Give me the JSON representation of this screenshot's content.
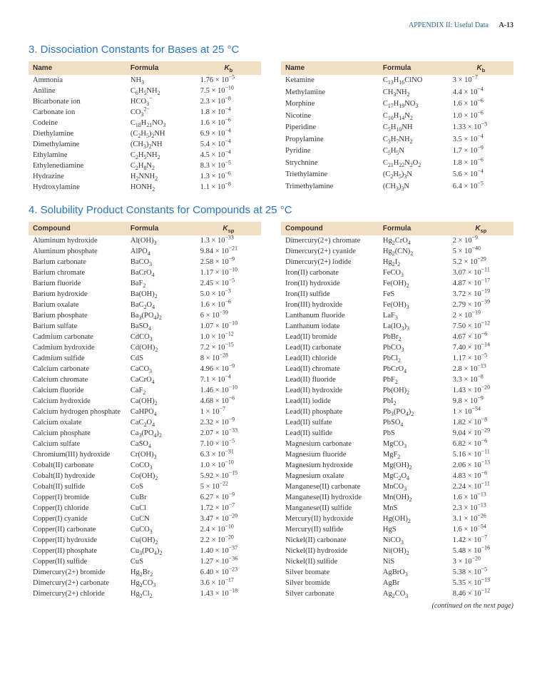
{
  "header": {
    "appendix": "APPENDIX II: Useful Data",
    "page": "A-13"
  },
  "section3": {
    "title": "3. Dissociation Constants for Bases at 25 °C",
    "cols": [
      "Name",
      "Formula",
      "K_b"
    ],
    "left": [
      {
        "name": "Ammonia",
        "formula": "NH<sub>3</sub>",
        "k": "1.76 × 10<sup>−5</sup>"
      },
      {
        "name": "Aniline",
        "formula": "C<sub>6</sub>H<sub>5</sub>NH<sub>2</sub>",
        "k": "7.5 × 10<sup>−10</sup>"
      },
      {
        "name": "Bicarbonate ion",
        "formula": "HCO<sub>3</sub><sup>−</sup>",
        "k": "2.3 × 10<sup>−8</sup>"
      },
      {
        "name": "Carbonate ion",
        "formula": "CO<sub>3</sub><sup>2−</sup>",
        "k": "1.8 × 10<sup>−4</sup>"
      },
      {
        "name": "Codeine",
        "formula": "C<sub>18</sub>H<sub>21</sub>NO<sub>3</sub>",
        "k": "1.6 × 10<sup>−6</sup>"
      },
      {
        "name": "Diethylamine",
        "formula": "(C<sub>2</sub>H<sub>5</sub>)<sub>2</sub>NH",
        "k": "6.9 × 10<sup>−4</sup>"
      },
      {
        "name": "Dimethylamine",
        "formula": "(CH<sub>3</sub>)<sub>2</sub>NH",
        "k": "5.4 × 10<sup>−4</sup>"
      },
      {
        "name": "Ethylamine",
        "formula": "C<sub>2</sub>H<sub>5</sub>NH<sub>2</sub>",
        "k": "4.5 × 10<sup>−4</sup>"
      },
      {
        "name": "Ethylenediamine",
        "formula": "C<sub>2</sub>H<sub>8</sub>N<sub>2</sub>",
        "k": "8.3 × 10<sup>−5</sup>"
      },
      {
        "name": "Hydrazine",
        "formula": "H<sub>2</sub>NNH<sub>2</sub>",
        "k": "1.3 × 10<sup>−6</sup>"
      },
      {
        "name": "Hydroxylamine",
        "formula": "HONH<sub>2</sub>",
        "k": "1.1 × 10<sup>−8</sup>"
      }
    ],
    "right": [
      {
        "name": "Ketamine",
        "formula": "C<sub>13</sub>H<sub>16</sub>ClNO",
        "k": "3 × 10<sup>−7</sup>"
      },
      {
        "name": "Methylamine",
        "formula": "CH<sub>3</sub>NH<sub>2</sub>",
        "k": "4.4 × 10<sup>−4</sup>"
      },
      {
        "name": "Morphine",
        "formula": "C<sub>17</sub>H<sub>19</sub>NO<sub>3</sub>",
        "k": "1.6 × 10<sup>−6</sup>"
      },
      {
        "name": "Nicotine",
        "formula": "C<sub>10</sub>H<sub>14</sub>N<sub>2</sub>",
        "k": "1.0 × 10<sup>−6</sup>"
      },
      {
        "name": "Piperidine",
        "formula": "C<sub>5</sub>H<sub>10</sub>NH",
        "k": "1.33 × 10<sup>−3</sup>"
      },
      {
        "name": "Propylamine",
        "formula": "C<sub>3</sub>H<sub>7</sub>NH<sub>2</sub>",
        "k": "3.5 × 10<sup>−4</sup>"
      },
      {
        "name": "Pyridine",
        "formula": "C<sub>5</sub>H<sub>5</sub>N",
        "k": "1.7 × 10<sup>−9</sup>"
      },
      {
        "name": "Strychnine",
        "formula": "C<sub>21</sub>H<sub>22</sub>N<sub>2</sub>O<sub>2</sub>",
        "k": "1.8 × 10<sup>−6</sup>"
      },
      {
        "name": "Triethylamine",
        "formula": "(C<sub>2</sub>H<sub>5</sub>)<sub>3</sub>N",
        "k": "5.6 × 10<sup>−4</sup>"
      },
      {
        "name": "Trimethylamine",
        "formula": "(CH<sub>3</sub>)<sub>3</sub>N",
        "k": "6.4 × 10<sup>−5</sup>"
      }
    ]
  },
  "section4": {
    "title": "4. Solubility Product Constants for Compounds at 25 °C",
    "cols": [
      "Compound",
      "Formula",
      "K_sp"
    ],
    "left": [
      {
        "name": "Aluminum hydroxide",
        "formula": "Al(OH)<sub>3</sub>",
        "k": "1.3 × 10<sup>−33</sup>"
      },
      {
        "name": "Aluminum phosphate",
        "formula": "AlPO<sub>4</sub>",
        "k": "9.84 × 10<sup>−21</sup>"
      },
      {
        "name": "Barium carbonate",
        "formula": "BaCO<sub>3</sub>",
        "k": "2.58 × 10<sup>−9</sup>"
      },
      {
        "name": "Barium chromate",
        "formula": "BaCrO<sub>4</sub>",
        "k": "1.17 × 10<sup>−10</sup>"
      },
      {
        "name": "Barium fluoride",
        "formula": "BaF<sub>2</sub>",
        "k": "2.45 × 10<sup>−5</sup>"
      },
      {
        "name": "Barium hydroxide",
        "formula": "Ba(OH)<sub>2</sub>",
        "k": "5.0 × 10<sup>−3</sup>"
      },
      {
        "name": "Barium oxalate",
        "formula": "BaC<sub>2</sub>O<sub>4</sub>",
        "k": "1.6 × 10<sup>−6</sup>"
      },
      {
        "name": "Barium phosphate",
        "formula": "Ba<sub>3</sub>(PO<sub>4</sub>)<sub>2</sub>",
        "k": "6 × 10<sup>−39</sup>"
      },
      {
        "name": "Barium sulfate",
        "formula": "BaSO<sub>4</sub>",
        "k": "1.07 × 10<sup>−10</sup>"
      },
      {
        "name": "Cadmium carbonate",
        "formula": "CdCO<sub>3</sub>",
        "k": "1.0 × 10<sup>−12</sup>"
      },
      {
        "name": "Cadmium hydroxide",
        "formula": "Cd(OH)<sub>2</sub>",
        "k": "7.2 × 10<sup>−15</sup>"
      },
      {
        "name": "Cadmium sulfide",
        "formula": "CdS",
        "k": "8 × 10<sup>−28</sup>"
      },
      {
        "name": "Calcium carbonate",
        "formula": "CaCO<sub>3</sub>",
        "k": "4.96 × 10<sup>−9</sup>"
      },
      {
        "name": "Calcium chromate",
        "formula": "CaCrO<sub>4</sub>",
        "k": "7.1 × 10<sup>−4</sup>"
      },
      {
        "name": "Calcium fluoride",
        "formula": "CaF<sub>2</sub>",
        "k": "1.46 × 10<sup>−10</sup>"
      },
      {
        "name": "Calcium hydroxide",
        "formula": "Ca(OH)<sub>2</sub>",
        "k": "4.68 × 10<sup>−6</sup>"
      },
      {
        "name": "Calcium hydrogen phosphate",
        "formula": "CaHPO<sub>4</sub>",
        "k": "1 × 10<sup>−7</sup>"
      },
      {
        "name": "Calcium oxalate",
        "formula": "CaC<sub>2</sub>O<sub>4</sub>",
        "k": "2.32 × 10<sup>−9</sup>"
      },
      {
        "name": "Calcium phosphate",
        "formula": "Ca<sub>3</sub>(PO<sub>4</sub>)<sub>2</sub>",
        "k": "2.07 × 10<sup>−33</sup>"
      },
      {
        "name": "Calcium sulfate",
        "formula": "CaSO<sub>4</sub>",
        "k": "7.10 × 10<sup>−5</sup>"
      },
      {
        "name": "Chromium(III) hydroxide",
        "formula": "Cr(OH)<sub>3</sub>",
        "k": "6.3 × 10<sup>−31</sup>"
      },
      {
        "name": "Cobalt(II) carbonate",
        "formula": "CoCO<sub>3</sub>",
        "k": "1.0 × 10<sup>−10</sup>"
      },
      {
        "name": "Cobalt(II) hydroxide",
        "formula": "Co(OH)<sub>2</sub>",
        "k": "5.92 × 10<sup>−15</sup>"
      },
      {
        "name": "Cobalt(II) sulfide",
        "formula": "CoS",
        "k": "5 × 10<sup>−22</sup>"
      },
      {
        "name": "Copper(I) bromide",
        "formula": "CuBr",
        "k": "6.27 × 10<sup>−9</sup>"
      },
      {
        "name": "Copper(I) chloride",
        "formula": "CuCl",
        "k": "1.72 × 10<sup>−7</sup>"
      },
      {
        "name": "Copper(I) cyanide",
        "formula": "CuCN",
        "k": "3.47 × 10<sup>−20</sup>"
      },
      {
        "name": "Copper(II) carbonate",
        "formula": "CuCO<sub>3</sub>",
        "k": "2.4 × 10<sup>−10</sup>"
      },
      {
        "name": "Copper(II) hydroxide",
        "formula": "Cu(OH)<sub>2</sub>",
        "k": "2.2 × 10<sup>−20</sup>"
      },
      {
        "name": "Copper(II) phosphate",
        "formula": "Cu<sub>3</sub>(PO<sub>4</sub>)<sub>2</sub>",
        "k": "1.40 × 10<sup>−37</sup>"
      },
      {
        "name": "Copper(II) sulfide",
        "formula": "CuS",
        "k": "1.27 × 10<sup>−36</sup>"
      },
      {
        "name": "Dimercury(2+) bromide",
        "formula": "Hg<sub>2</sub>Br<sub>2</sub>",
        "k": "6.40 × 10<sup>−23</sup>"
      },
      {
        "name": "Dimercury(2+) carbonate",
        "formula": "Hg<sub>2</sub>CO<sub>3</sub>",
        "k": "3.6 × 10<sup>−17</sup>"
      },
      {
        "name": "Dimercury(2+) chloride",
        "formula": "Hg<sub>2</sub>Cl<sub>2</sub>",
        "k": "1.43 × 10<sup>−18</sup>"
      }
    ],
    "right": [
      {
        "name": "Dimercury(2+) chromate",
        "formula": "Hg<sub>2</sub>CrO<sub>4</sub>",
        "k": "2 × 10<sup>−9</sup>"
      },
      {
        "name": "Dimercury(2+) cyanide",
        "formula": "Hg<sub>2</sub>(CN)<sub>2</sub>",
        "k": "5 × 10<sup>−40</sup>"
      },
      {
        "name": "Dimercury(2+) iodide",
        "formula": "Hg<sub>2</sub>I<sub>2</sub>",
        "k": "5.2 × 10<sup>−29</sup>"
      },
      {
        "name": "Iron(II) carbonate",
        "formula": "FeCO<sub>3</sub>",
        "k": "3.07 × 10<sup>−11</sup>"
      },
      {
        "name": "Iron(II) hydroxide",
        "formula": "Fe(OH)<sub>2</sub>",
        "k": "4.87 × 10<sup>−17</sup>"
      },
      {
        "name": "Iron(II) sulfide",
        "formula": "FeS",
        "k": "3.72 × 10<sup>−19</sup>"
      },
      {
        "name": "Iron(III) hydroxide",
        "formula": "Fe(OH)<sub>3</sub>",
        "k": "2.79 × 10<sup>−39</sup>"
      },
      {
        "name": "Lanthanum fluoride",
        "formula": "LaF<sub>3</sub>",
        "k": "2 × 10<sup>−19</sup>"
      },
      {
        "name": "Lanthanum iodate",
        "formula": "La(IO<sub>3</sub>)<sub>3</sub>",
        "k": "7.50 × 10<sup>−12</sup>"
      },
      {
        "name": "Lead(II) bromide",
        "formula": "PbBr<sub>2</sub>",
        "k": "4.67 × 10<sup>−6</sup>"
      },
      {
        "name": "Lead(II) carbonate",
        "formula": "PbCO<sub>3</sub>",
        "k": "7.40 × 10<sup>−14</sup>"
      },
      {
        "name": "Lead(II) chloride",
        "formula": "PbCl<sub>2</sub>",
        "k": "1.17 × 10<sup>−5</sup>"
      },
      {
        "name": "Lead(II) chromate",
        "formula": "PbCrO<sub>4</sub>",
        "k": "2.8 × 10<sup>−13</sup>"
      },
      {
        "name": "Lead(II) fluoride",
        "formula": "PbF<sub>2</sub>",
        "k": "3.3 × 10<sup>−8</sup>"
      },
      {
        "name": "Lead(II) hydroxide",
        "formula": "Pb(OH)<sub>2</sub>",
        "k": "1.43 × 10<sup>−20</sup>"
      },
      {
        "name": "Lead(II) iodide",
        "formula": "PbI<sub>2</sub>",
        "k": "9.8 × 10<sup>−9</sup>"
      },
      {
        "name": "Lead(II) phosphate",
        "formula": "Pb<sub>3</sub>(PO<sub>4</sub>)<sub>2</sub>",
        "k": "1 × 10<sup>−54</sup>"
      },
      {
        "name": "Lead(II) sulfate",
        "formula": "PbSO<sub>4</sub>",
        "k": "1.82 × 10<sup>−8</sup>"
      },
      {
        "name": "Lead(II) sulfide",
        "formula": "PbS",
        "k": "9.04 × 10<sup>−29</sup>"
      },
      {
        "name": "Magnesium carbonate",
        "formula": "MgCO<sub>3</sub>",
        "k": "6.82 × 10<sup>−6</sup>"
      },
      {
        "name": "Magnesium fluoride",
        "formula": "MgF<sub>2</sub>",
        "k": "5.16 × 10<sup>−11</sup>"
      },
      {
        "name": "Magnesium hydroxide",
        "formula": "Mg(OH)<sub>2</sub>",
        "k": "2.06 × 10<sup>−13</sup>"
      },
      {
        "name": "Magnesium oxalate",
        "formula": "MgC<sub>2</sub>O<sub>4</sub>",
        "k": "4.83 × 10<sup>−6</sup>"
      },
      {
        "name": "Manganese(II) carbonate",
        "formula": "MnCO<sub>3</sub>",
        "k": "2.24 × 10<sup>−11</sup>"
      },
      {
        "name": "Manganese(II) hydroxide",
        "formula": "Mn(OH)<sub>2</sub>",
        "k": "1.6 × 10<sup>−13</sup>"
      },
      {
        "name": "Manganese(II) sulfide",
        "formula": "MnS",
        "k": "2.3 × 10<sup>−13</sup>"
      },
      {
        "name": "Mercury(II) hydroxide",
        "formula": "Hg(OH)<sub>2</sub>",
        "k": "3.1 × 10<sup>−26</sup>"
      },
      {
        "name": "Mercury(II) sulfide",
        "formula": "HgS",
        "k": "1.6 × 10<sup>−54</sup>"
      },
      {
        "name": "Nickel(II) carbonate",
        "formula": "NiCO<sub>3</sub>",
        "k": "1.42 × 10<sup>−7</sup>"
      },
      {
        "name": "Nickel(II) hydroxide",
        "formula": "Ni(OH)<sub>2</sub>",
        "k": "5.48 × 10<sup>−16</sup>"
      },
      {
        "name": "Nickel(II) sulfide",
        "formula": "NiS",
        "k": "3 × 10<sup>−20</sup>"
      },
      {
        "name": "Silver bromate",
        "formula": "AgBrO<sub>3</sub>",
        "k": "5.38 × 10<sup>−5</sup>"
      },
      {
        "name": "Silver bromide",
        "formula": "AgBr",
        "k": "5.35 × 10<sup>−13</sup>"
      },
      {
        "name": "Silver carbonate",
        "formula": "Ag<sub>2</sub>CO<sub>3</sub>",
        "k": "8.46 × 10<sup>−12</sup>"
      }
    ],
    "continued": "(continued on the next page)"
  }
}
